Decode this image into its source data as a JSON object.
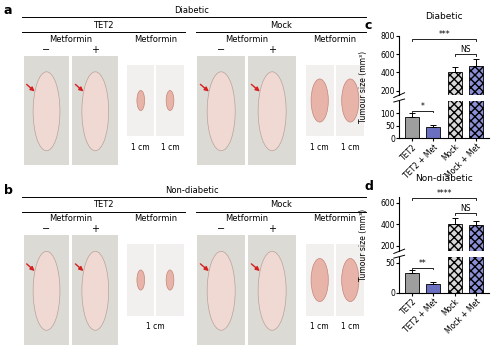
{
  "panels": [
    {
      "letter": "a",
      "condition": "Diabetic",
      "groups": [
        {
          "name": "TET2",
          "treatment": "Metformin",
          "signs": [
            "−",
            "+"
          ],
          "scale": [
            "1 cm",
            "1 cm"
          ]
        },
        {
          "name": "Mock",
          "treatment": "Metformin",
          "signs": [
            "−",
            "+"
          ],
          "scale": [
            "1 cm",
            "1 cm"
          ]
        }
      ]
    },
    {
      "letter": "b",
      "condition": "Non-diabetic",
      "groups": [
        {
          "name": "TET2",
          "treatment": "Metformin",
          "signs": [
            "−",
            "+"
          ],
          "scale": [
            "1 cm"
          ]
        },
        {
          "name": "Mock",
          "treatment": "Metformin",
          "signs": [
            "−",
            "+"
          ],
          "scale": [
            "1 cm",
            "1 cm"
          ]
        }
      ]
    }
  ],
  "chart_data": [
    {
      "type": "bar",
      "panel": "c",
      "title": "Diabetic",
      "y_label": "Tumour size (mm³)",
      "categories": [
        "TET2",
        "TET2 + Met",
        "Mock",
        "Mock + Met"
      ],
      "values": [
        85,
        45,
        400,
        470
      ],
      "errors": [
        15,
        6,
        55,
        80
      ],
      "colors": [
        "#9e9e9e",
        "#6b6fbf",
        "#d9d9d9",
        "#8a8fd6"
      ],
      "axis_segments": [
        {
          "ylim": [
            0,
            150
          ],
          "yticks": [
            0,
            50,
            100
          ]
        },
        {
          "ylim": [
            150,
            800
          ],
          "yticks": [
            200,
            400,
            600,
            800
          ]
        }
      ],
      "significance": [
        {
          "text": "*",
          "from": 0,
          "to": 1
        },
        {
          "text": "***",
          "from": 0,
          "to": 3
        },
        {
          "text": "NS",
          "from": 2,
          "to": 3
        }
      ]
    },
    {
      "type": "bar",
      "panel": "d",
      "title": "Non-diabetic",
      "y_label": "Tumour size (mm³)",
      "categories": [
        "TET2",
        "TET2 + Met",
        "Mock",
        "Mock + Met"
      ],
      "values": [
        33,
        15,
        400,
        390
      ],
      "errors": [
        5,
        2,
        60,
        45
      ],
      "colors": [
        "#9e9e9e",
        "#6b6fbf",
        "#d9d9d9",
        "#8a8fd6"
      ],
      "axis_segments": [
        {
          "ylim": [
            0,
            60
          ],
          "yticks": [
            0,
            50
          ]
        },
        {
          "ylim": [
            150,
            650
          ],
          "yticks": [
            200,
            400,
            600
          ]
        }
      ],
      "significance": [
        {
          "text": "**",
          "from": 0,
          "to": 1
        },
        {
          "text": "****",
          "from": 0,
          "to": 3
        },
        {
          "text": "NS",
          "from": 2,
          "to": 3
        }
      ]
    }
  ]
}
